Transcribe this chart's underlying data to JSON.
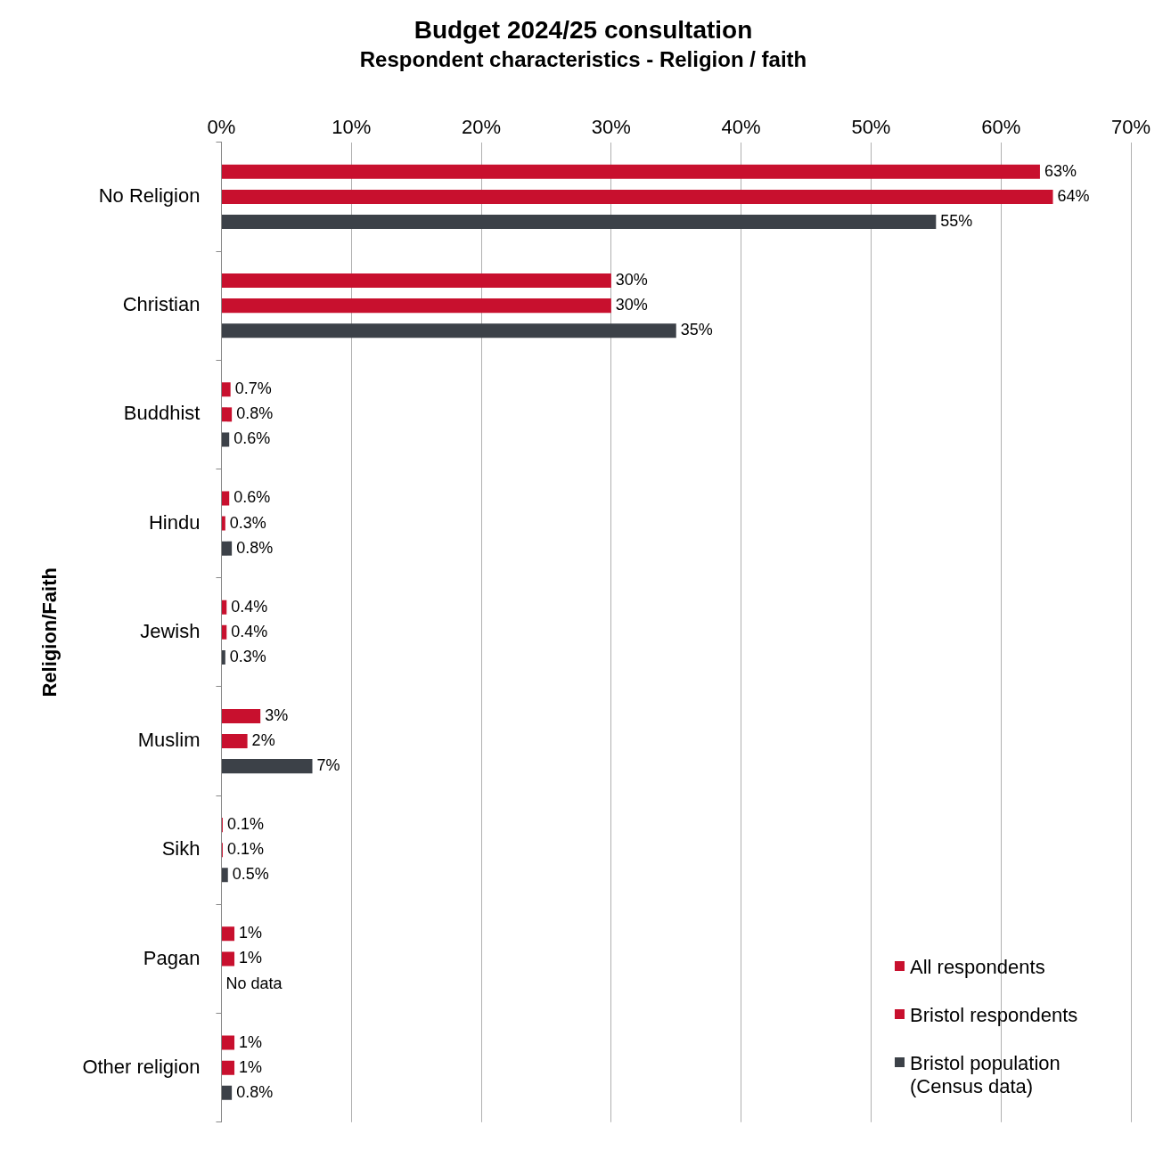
{
  "chart_data": {
    "type": "bar",
    "orientation": "horizontal",
    "title": "Budget 2024/25 consultation",
    "subtitle": "Respondent characteristics - Religion / faith",
    "ylabel": "Religion/Faith",
    "categories": [
      "No Religion",
      "Christian",
      "Buddhist",
      "Hindu",
      "Jewish",
      "Muslim",
      "Sikh",
      "Pagan",
      "Other religion"
    ],
    "series": [
      {
        "name": "All respondents",
        "color": "#c8102e",
        "values": [
          63,
          30,
          0.7,
          0.6,
          0.4,
          3,
          0.1,
          1,
          1
        ],
        "value_labels": [
          "63%",
          "30%",
          "0.7%",
          "0.6%",
          "0.4%",
          "3%",
          "0.1%",
          "1%",
          "1%"
        ]
      },
      {
        "name": "Bristol respondents",
        "color": "#c8102e",
        "values": [
          64,
          30,
          0.8,
          0.3,
          0.4,
          2,
          0.1,
          1,
          1
        ],
        "value_labels": [
          "64%",
          "30%",
          "0.8%",
          "0.3%",
          "0.4%",
          "2%",
          "0.1%",
          "1%",
          "1%"
        ]
      },
      {
        "name": "Bristol population (Census data)",
        "color": "#3c4148",
        "values": [
          55,
          35,
          0.6,
          0.8,
          0.3,
          7,
          0.5,
          null,
          0.8
        ],
        "value_labels": [
          "55%",
          "35%",
          "0.6%",
          "0.8%",
          "0.3%",
          "7%",
          "0.5%",
          "No data",
          "0.8%"
        ]
      }
    ],
    "xlim": [
      0,
      70
    ],
    "xticks": [
      {
        "value": 0,
        "label": "0%"
      },
      {
        "value": 10,
        "label": "10%"
      },
      {
        "value": 20,
        "label": "20%"
      },
      {
        "value": 30,
        "label": "30%"
      },
      {
        "value": 40,
        "label": "40%"
      },
      {
        "value": 50,
        "label": "50%"
      },
      {
        "value": 60,
        "label": "60%"
      },
      {
        "value": 70,
        "label": "70%"
      }
    ],
    "grid": "x",
    "legend": "bottom right"
  }
}
